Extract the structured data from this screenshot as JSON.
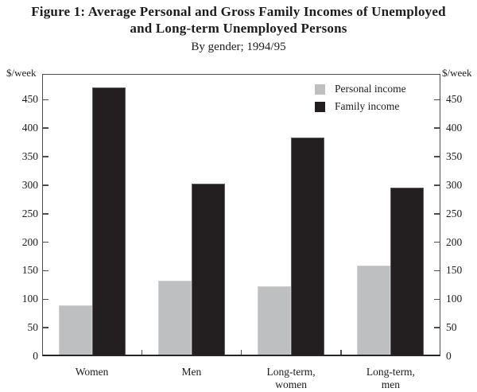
{
  "figure": {
    "title_lines": [
      "Figure 1: Average Personal and Gross Family Incomes of Unemployed",
      "and Long-term Unemployed Persons"
    ],
    "subtitle": "By gender; 1994/95"
  },
  "axis": {
    "left_unit": "$/week",
    "right_unit": "$/week"
  },
  "legend": {
    "items": [
      {
        "label": "Personal income",
        "color": "#bdbfc1"
      },
      {
        "label": "Family income",
        "color": "#231f20"
      }
    ]
  },
  "chart_data": {
    "type": "bar",
    "title": "Figure 1: Average Personal and Gross Family Incomes of Unemployed and Long-term Unemployed Persons",
    "subtitle": "By gender; 1994/95",
    "categories": [
      "Women",
      "Men",
      "Long-term, women",
      "Long-term, men"
    ],
    "series": [
      {
        "name": "Personal income",
        "color": "#bdbfc1",
        "values": [
          90,
          133,
          123,
          159
        ]
      },
      {
        "name": "Family income",
        "color": "#231f20",
        "values": [
          471,
          302,
          383,
          295
        ]
      }
    ],
    "ylabel_left": "$/week",
    "ylabel_right": "$/week",
    "ylim": [
      0,
      495
    ],
    "y_ticks": [
      0,
      50,
      100,
      150,
      200,
      250,
      300,
      350,
      400,
      450
    ],
    "legend_position": "top-right",
    "grid": false
  }
}
